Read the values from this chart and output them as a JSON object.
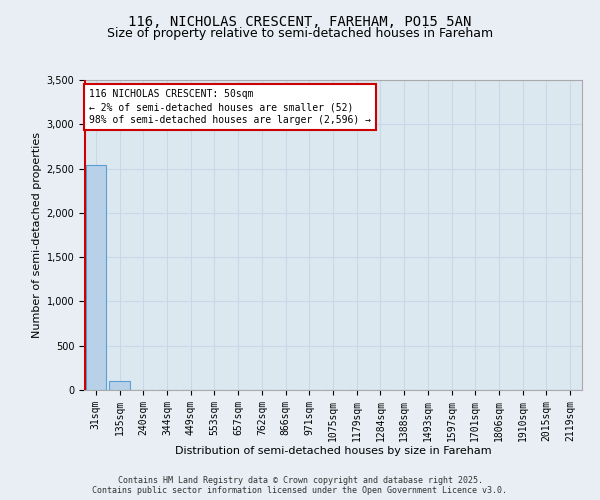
{
  "title_line1": "116, NICHOLAS CRESCENT, FAREHAM, PO15 5AN",
  "title_line2": "Size of property relative to semi-detached houses in Fareham",
  "xlabel": "Distribution of semi-detached houses by size in Fareham",
  "ylabel": "Number of semi-detached properties",
  "categories": [
    "31sqm",
    "135sqm",
    "240sqm",
    "344sqm",
    "449sqm",
    "553sqm",
    "657sqm",
    "762sqm",
    "866sqm",
    "971sqm",
    "1075sqm",
    "1179sqm",
    "1284sqm",
    "1388sqm",
    "1493sqm",
    "1597sqm",
    "1701sqm",
    "1806sqm",
    "1910sqm",
    "2015sqm",
    "2119sqm"
  ],
  "values": [
    2544,
    97,
    5,
    2,
    1,
    0,
    0,
    0,
    0,
    0,
    0,
    0,
    0,
    0,
    0,
    0,
    0,
    0,
    0,
    0,
    0
  ],
  "bar_color": "#b8d0e8",
  "bar_edge_color": "#5a9fd4",
  "subject_label_line1": "116 NICHOLAS CRESCENT: 50sqm",
  "subject_label_line2": "← 2% of semi-detached houses are smaller (52)",
  "subject_label_line3": "98% of semi-detached houses are larger (2,596) →",
  "annotation_box_facecolor": "#ffffff",
  "annotation_box_edgecolor": "#cc0000",
  "vline_color": "#cc0000",
  "ylim": [
    0,
    3500
  ],
  "yticks": [
    0,
    500,
    1000,
    1500,
    2000,
    2500,
    3000,
    3500
  ],
  "grid_color": "#c8d8e8",
  "plot_bg_color": "#dce8f0",
  "fig_bg_color": "#e8eef4",
  "title_fontsize": 10,
  "subtitle_fontsize": 9,
  "ylabel_fontsize": 8,
  "xlabel_fontsize": 8,
  "tick_fontsize": 7,
  "annotation_fontsize": 7,
  "footer_fontsize": 6,
  "footer_line1": "Contains HM Land Registry data © Crown copyright and database right 2025.",
  "footer_line2": "Contains public sector information licensed under the Open Government Licence v3.0."
}
